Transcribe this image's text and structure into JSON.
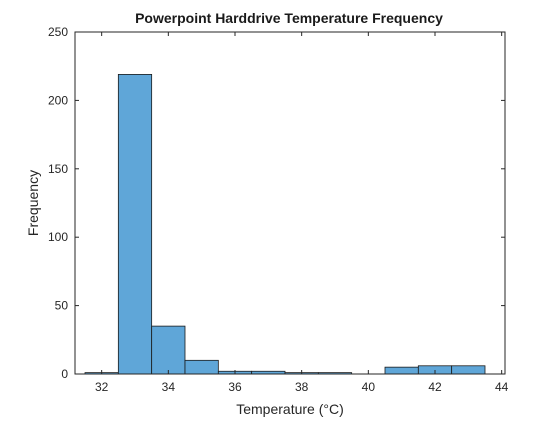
{
  "chart_data": {
    "type": "bar",
    "title": "Powerpoint Harddrive Temperature Frequency",
    "xlabel": "Temperature (°C)",
    "ylabel": "Frequency",
    "xlim": [
      31.2,
      44.1
    ],
    "ylim": [
      0,
      250
    ],
    "xticks": [
      32,
      34,
      36,
      38,
      40,
      42,
      44
    ],
    "yticks": [
      0,
      50,
      100,
      150,
      200,
      250
    ],
    "grid": false,
    "bar_color": "#5fa6d8",
    "bar_edge_color": "#1a1a1a",
    "bins": [
      {
        "x0": 31.5,
        "x1": 32.5,
        "value": 1
      },
      {
        "x0": 32.5,
        "x1": 33.5,
        "value": 219
      },
      {
        "x0": 33.5,
        "x1": 34.5,
        "value": 35
      },
      {
        "x0": 34.5,
        "x1": 35.5,
        "value": 10
      },
      {
        "x0": 35.5,
        "x1": 36.5,
        "value": 2
      },
      {
        "x0": 36.5,
        "x1": 37.5,
        "value": 2
      },
      {
        "x0": 37.5,
        "x1": 38.5,
        "value": 1
      },
      {
        "x0": 38.5,
        "x1": 39.5,
        "value": 1
      },
      {
        "x0": 39.5,
        "x1": 40.5,
        "value": 0
      },
      {
        "x0": 40.5,
        "x1": 41.5,
        "value": 5
      },
      {
        "x0": 41.5,
        "x1": 42.5,
        "value": 6
      },
      {
        "x0": 42.5,
        "x1": 43.5,
        "value": 6
      }
    ]
  }
}
